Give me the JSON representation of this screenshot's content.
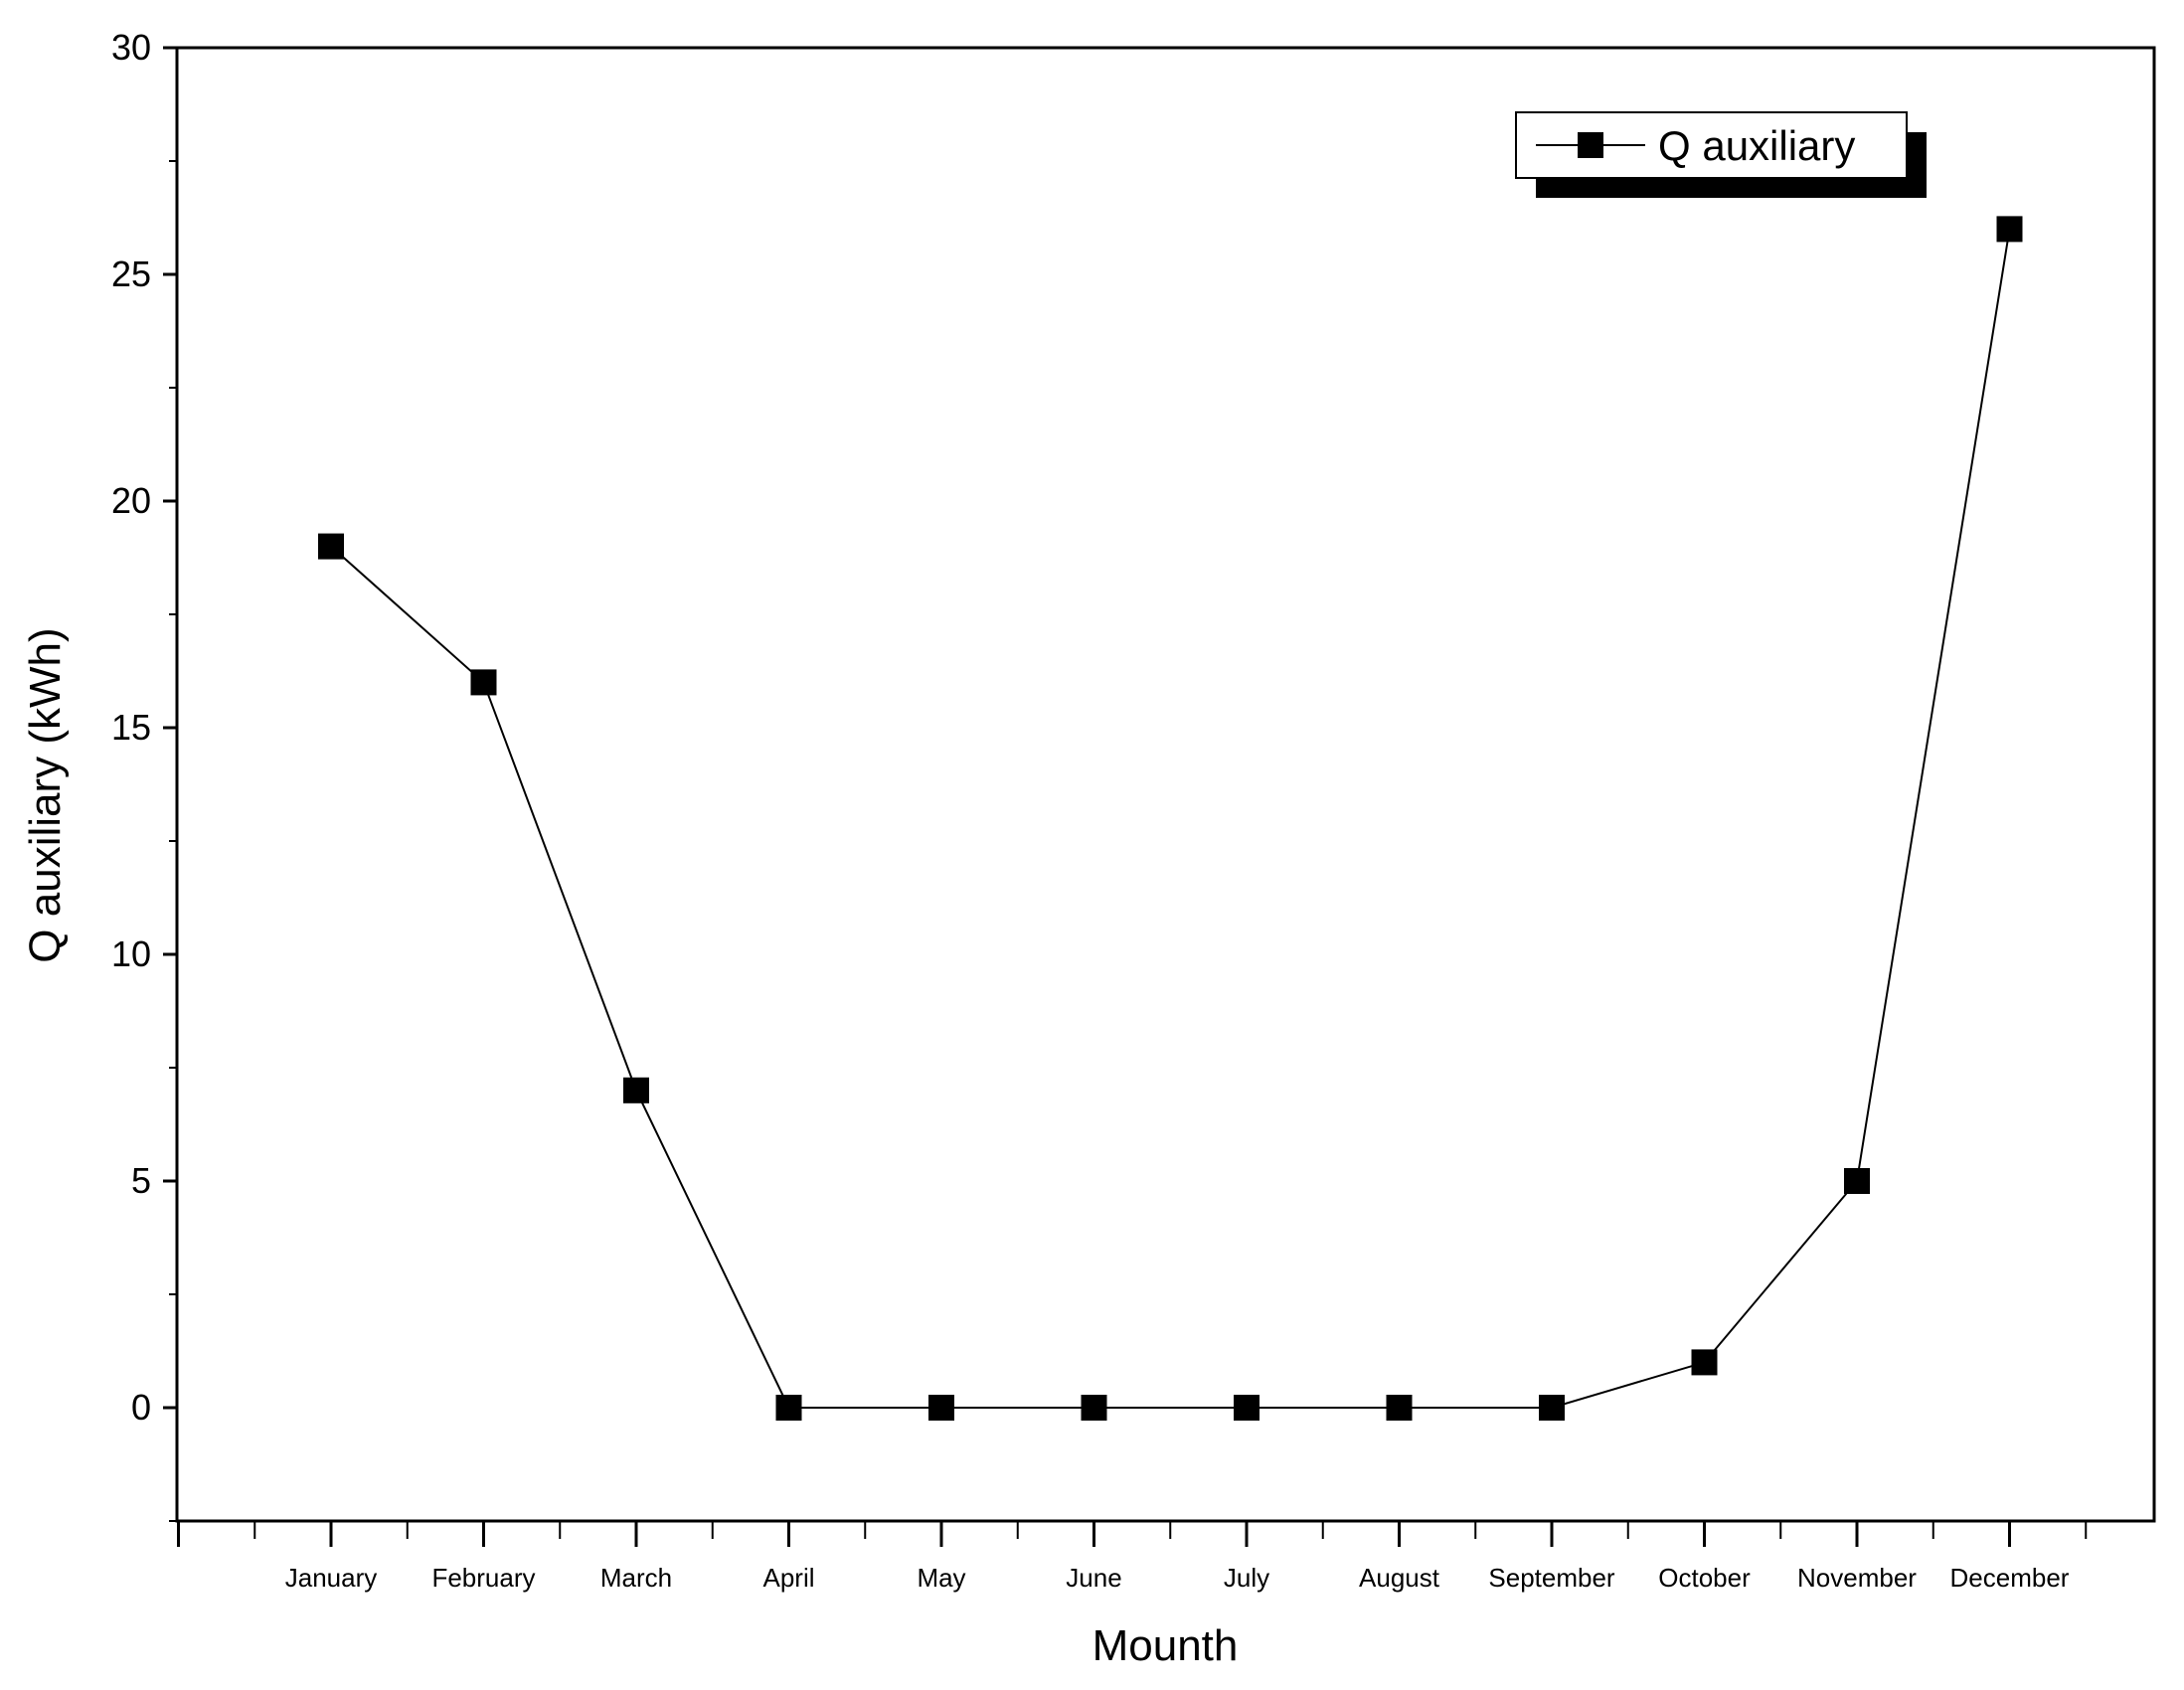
{
  "chart_data": {
    "type": "line",
    "categories": [
      "January",
      "February",
      "March",
      "April",
      "May",
      "June",
      "July",
      "August",
      "September",
      "October",
      "November",
      "December"
    ],
    "series": [
      {
        "name": "Q auxiliary",
        "values": [
          19,
          16,
          7,
          0,
          0,
          0,
          0,
          0,
          0,
          1,
          5,
          26
        ],
        "color": "#000000",
        "marker": "square"
      }
    ],
    "xlabel": "Mounth",
    "ylabel": "Q auxiliary (kWh)",
    "ylim": [
      -2.5,
      30
    ],
    "yticks": [
      0,
      5,
      10,
      15,
      20,
      25,
      30
    ],
    "grid": false,
    "legend_position": "top-right"
  }
}
